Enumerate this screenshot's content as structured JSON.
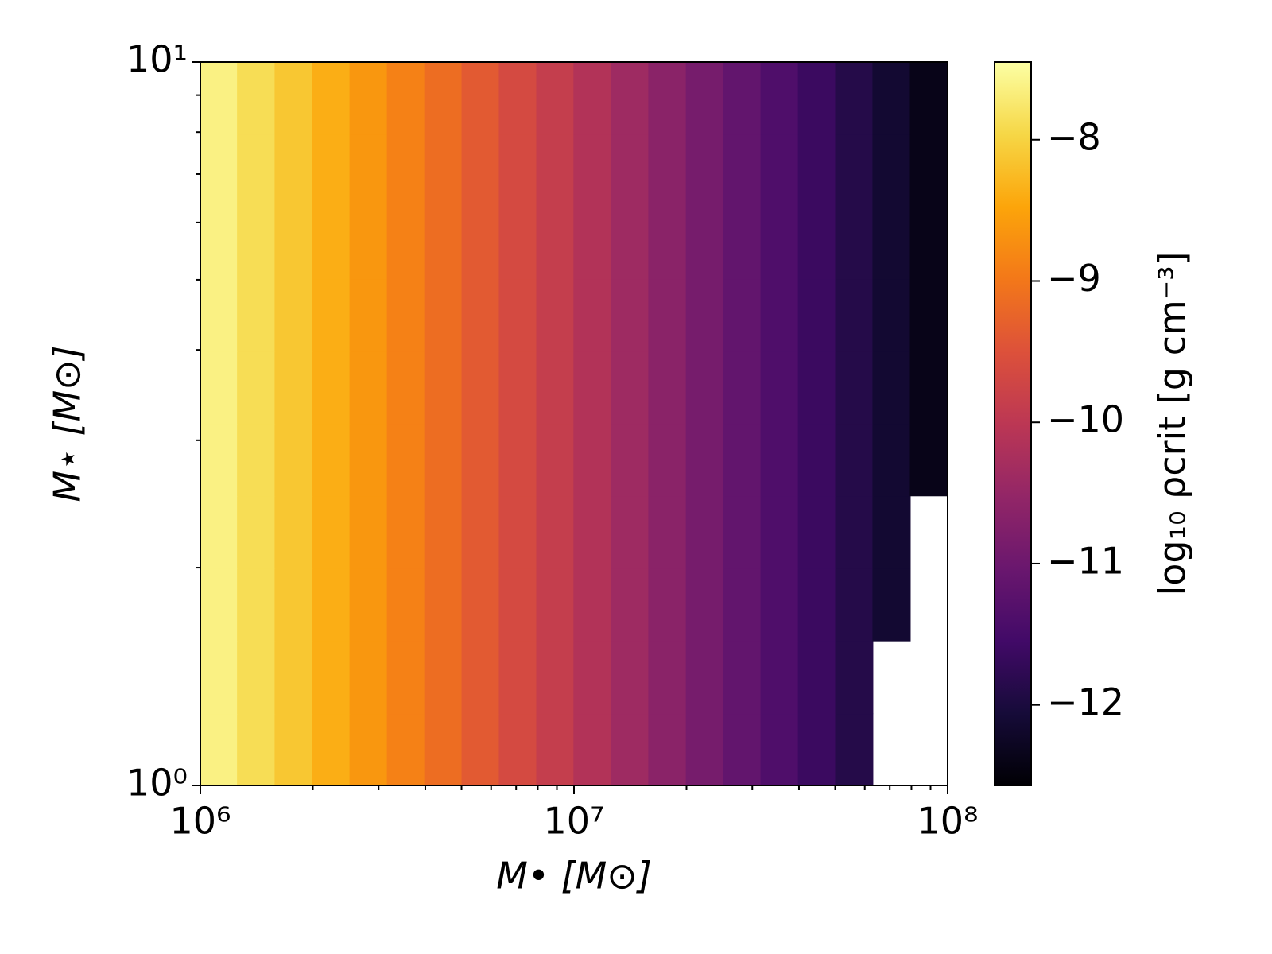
{
  "chart_data": {
    "type": "heatmap",
    "xlabel": "M• [M⊙]",
    "ylabel": "M⋆ [M⊙]",
    "colorbar_label": "log₁₀ ρcrit [g cm⁻³]",
    "xscale": "log",
    "yscale": "log",
    "xlim": [
      1000000,
      100000000
    ],
    "ylim": [
      1,
      10
    ],
    "xticks": [
      {
        "value": 1000000,
        "label": "10⁶"
      },
      {
        "value": 10000000,
        "label": "10⁷"
      },
      {
        "value": 100000000,
        "label": "10⁸"
      }
    ],
    "yticks": [
      {
        "value": 1,
        "label": "10⁰"
      },
      {
        "value": 10,
        "label": "10¹"
      }
    ],
    "xminorticks": [
      2000000,
      3000000,
      4000000,
      5000000,
      6000000,
      7000000,
      8000000,
      9000000,
      20000000,
      30000000,
      40000000,
      50000000,
      60000000,
      70000000,
      80000000,
      90000000
    ],
    "yminorticks": [
      2,
      3,
      4,
      5,
      6,
      7,
      8,
      9
    ],
    "colormap": "inferno",
    "clim": [
      -12.57,
      -7.45
    ],
    "cticks": [
      {
        "value": -8,
        "label": "−8"
      },
      {
        "value": -9,
        "label": "−9"
      },
      {
        "value": -10,
        "label": "−10"
      },
      {
        "value": -11,
        "label": "−11"
      },
      {
        "value": -12,
        "label": "−12"
      }
    ],
    "x": [
      1120000,
      1410000,
      1780000,
      2240000,
      2820000,
      3550000,
      4470000,
      5620000,
      7080000,
      8910000,
      11200000,
      14100000,
      17800000,
      22400000,
      28200000,
      35500000,
      44700000,
      56200000,
      70800000,
      89100000
    ],
    "y": [
      1.12,
      1.41,
      1.78,
      2.24,
      2.82,
      3.55,
      4.47,
      5.62,
      7.08,
      8.91
    ],
    "z": [
      [
        -7.63,
        -7.88,
        -8.13,
        -8.38,
        -8.63,
        -8.88,
        -9.13,
        -9.38,
        -9.63,
        -9.88,
        -10.13,
        -10.38,
        -10.63,
        -10.88,
        -11.13,
        -11.38,
        -11.63,
        -11.88,
        null,
        null
      ],
      [
        -7.63,
        -7.88,
        -8.13,
        -8.38,
        -8.63,
        -8.88,
        -9.13,
        -9.38,
        -9.63,
        -9.88,
        -10.13,
        -10.38,
        -10.63,
        -10.88,
        -11.13,
        -11.38,
        -11.63,
        -11.88,
        null,
        null
      ],
      [
        -7.63,
        -7.88,
        -8.13,
        -8.38,
        -8.63,
        -8.88,
        -9.13,
        -9.38,
        -9.63,
        -9.88,
        -10.13,
        -10.38,
        -10.63,
        -10.88,
        -11.13,
        -11.38,
        -11.63,
        -11.88,
        -12.13,
        null
      ],
      [
        -7.63,
        -7.88,
        -8.13,
        -8.38,
        -8.63,
        -8.88,
        -9.13,
        -9.38,
        -9.63,
        -9.88,
        -10.13,
        -10.38,
        -10.63,
        -10.88,
        -11.13,
        -11.38,
        -11.63,
        -11.88,
        -12.13,
        null
      ],
      [
        -7.63,
        -7.88,
        -8.13,
        -8.38,
        -8.63,
        -8.88,
        -9.13,
        -9.38,
        -9.63,
        -9.88,
        -10.13,
        -10.38,
        -10.63,
        -10.88,
        -11.13,
        -11.38,
        -11.63,
        -11.88,
        -12.13,
        -12.38
      ],
      [
        -7.63,
        -7.88,
        -8.13,
        -8.38,
        -8.63,
        -8.88,
        -9.13,
        -9.38,
        -9.63,
        -9.88,
        -10.13,
        -10.38,
        -10.63,
        -10.88,
        -11.13,
        -11.38,
        -11.63,
        -11.88,
        -12.13,
        -12.38
      ],
      [
        -7.63,
        -7.88,
        -8.13,
        -8.38,
        -8.63,
        -8.88,
        -9.13,
        -9.38,
        -9.63,
        -9.88,
        -10.13,
        -10.38,
        -10.63,
        -10.88,
        -11.13,
        -11.38,
        -11.63,
        -11.88,
        -12.13,
        -12.38
      ],
      [
        -7.63,
        -7.88,
        -8.13,
        -8.38,
        -8.63,
        -8.88,
        -9.13,
        -9.38,
        -9.63,
        -9.88,
        -10.13,
        -10.38,
        -10.63,
        -10.88,
        -11.13,
        -11.38,
        -11.63,
        -11.88,
        -12.13,
        -12.38
      ],
      [
        -7.63,
        -7.88,
        -8.13,
        -8.38,
        -8.63,
        -8.88,
        -9.13,
        -9.38,
        -9.63,
        -9.88,
        -10.13,
        -10.38,
        -10.63,
        -10.88,
        -11.13,
        -11.38,
        -11.63,
        -11.88,
        -12.13,
        -12.38
      ],
      [
        -7.63,
        -7.88,
        -8.13,
        -8.38,
        -8.63,
        -8.88,
        -9.13,
        -9.38,
        -9.63,
        -9.88,
        -10.13,
        -10.38,
        -10.63,
        -10.88,
        -11.13,
        -11.38,
        -11.63,
        -11.88,
        -12.13,
        -12.38
      ]
    ]
  }
}
